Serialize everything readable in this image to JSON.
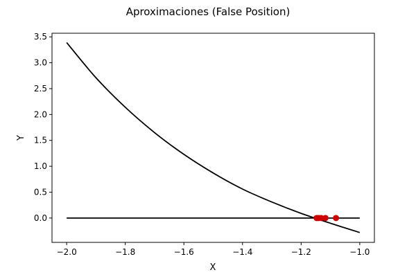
{
  "chart_data": {
    "type": "line",
    "title": "Aproximaciones (False Position)",
    "xlabel": "X",
    "ylabel": "Y",
    "xlim": [
      -2.05,
      -0.95
    ],
    "ylim": [
      -0.47,
      3.57
    ],
    "xticks": [
      -2.0,
      -1.8,
      -1.6,
      -1.4,
      -1.2,
      -1.0
    ],
    "xtick_labels": [
      "−2.0",
      "−1.8",
      "−1.6",
      "−1.4",
      "−1.2",
      "−1.0"
    ],
    "yticks": [
      0.0,
      0.5,
      1.0,
      1.5,
      2.0,
      2.5,
      3.0,
      3.5
    ],
    "ytick_labels": [
      "0.0",
      "0.5",
      "1.0",
      "1.5",
      "2.0",
      "2.5",
      "3.0",
      "3.5"
    ],
    "grid": false,
    "legend": "none",
    "series": [
      {
        "kind": "line",
        "color": "#000000",
        "x": [
          -2.0,
          -1.9,
          -1.8,
          -1.7,
          -1.6,
          -1.5,
          -1.4,
          -1.3,
          -1.2,
          -1.1,
          -1.0
        ],
        "y": [
          3.39,
          2.71,
          2.14,
          1.65,
          1.23,
          0.87,
          0.56,
          0.31,
          0.09,
          -0.1,
          -0.28
        ]
      },
      {
        "kind": "line",
        "color": "#000000",
        "x": [
          -2.0,
          -1.0
        ],
        "y": [
          0.0,
          0.0
        ]
      },
      {
        "kind": "scatter",
        "color": "#cc0000",
        "x": [
          -1.147,
          -1.141,
          -1.132,
          -1.117,
          -1.081
        ],
        "y": [
          0.0,
          0.0,
          0.0,
          0.0,
          0.0
        ]
      }
    ]
  }
}
